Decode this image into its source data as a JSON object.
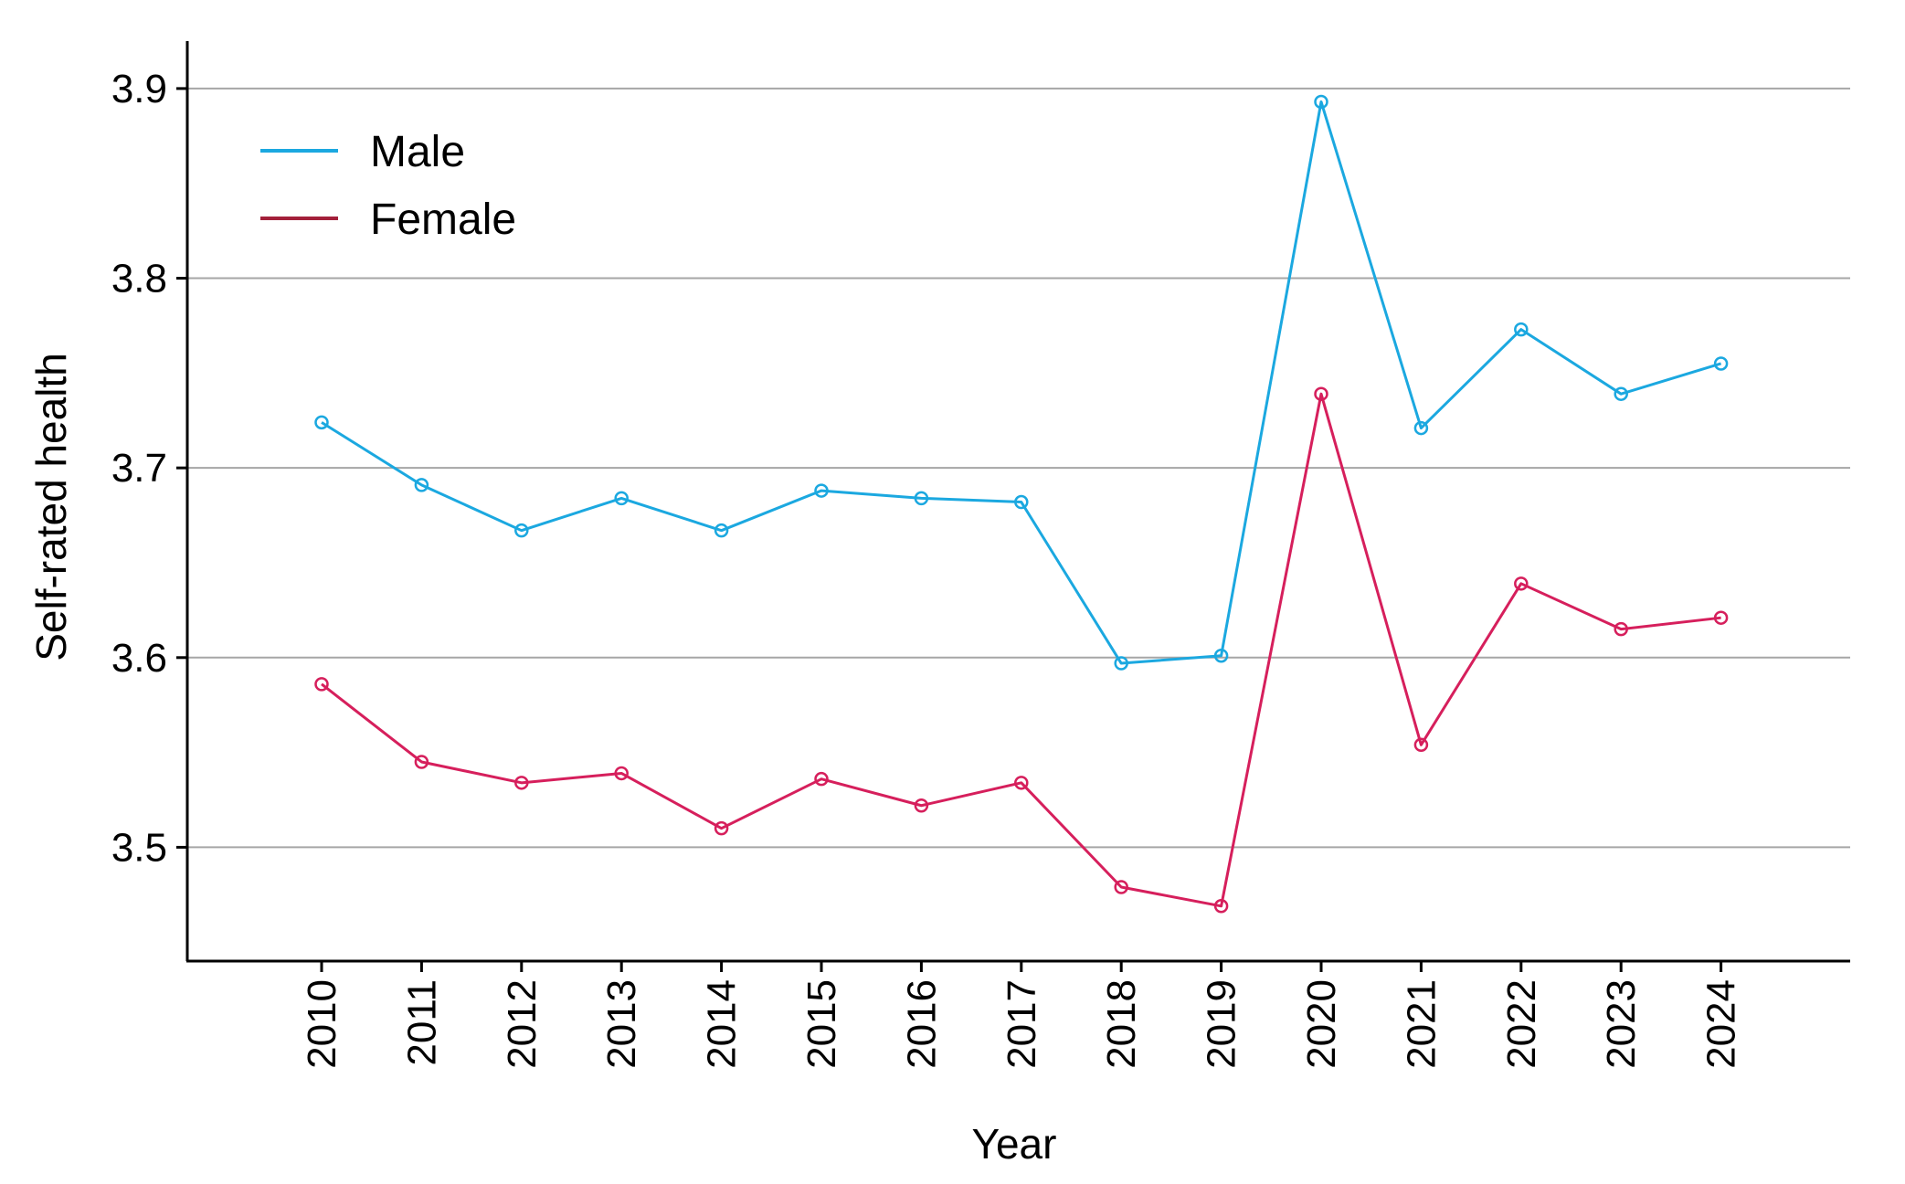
{
  "chart_data": {
    "type": "line",
    "title": "",
    "xlabel": "Year",
    "ylabel": "Self-rated health",
    "categories": [
      "2010",
      "2011",
      "2012",
      "2013",
      "2014",
      "2015",
      "2016",
      "2017",
      "2018",
      "2019",
      "2020",
      "2021",
      "2022",
      "2023",
      "2024"
    ],
    "ylim": [
      3.44,
      3.925
    ],
    "yticks": [
      "3.5",
      "3.6",
      "3.7",
      "3.8",
      "3.9"
    ],
    "grid": true,
    "legend_position": "top-left",
    "series": [
      {
        "name": "Male",
        "color": "#1ba8e0",
        "values": [
          3.724,
          3.691,
          3.667,
          3.684,
          3.667,
          3.688,
          3.684,
          3.682,
          3.597,
          3.601,
          3.893,
          3.721,
          3.773,
          3.739,
          3.755
        ]
      },
      {
        "name": "Female",
        "color": "#d61f5c",
        "legend_color": "#a3203a",
        "values": [
          3.586,
          3.545,
          3.534,
          3.539,
          3.51,
          3.536,
          3.522,
          3.534,
          3.479,
          3.469,
          3.739,
          3.554,
          3.639,
          3.615,
          3.621
        ]
      }
    ]
  }
}
